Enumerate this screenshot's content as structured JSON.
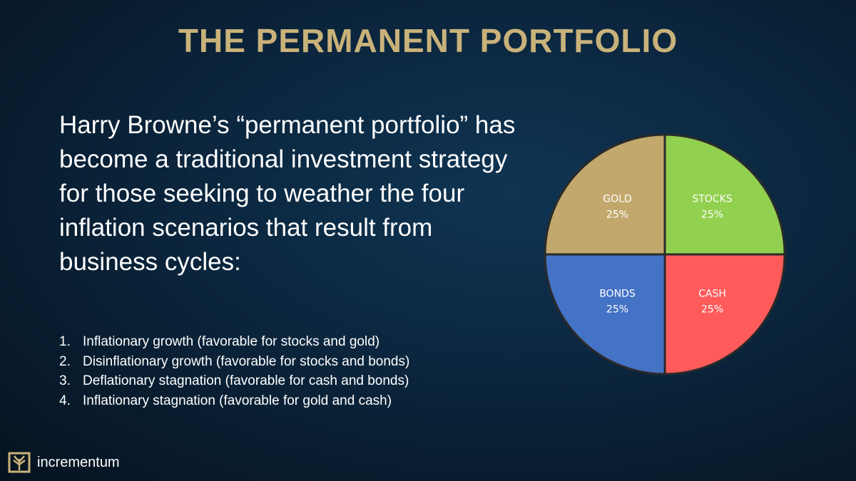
{
  "title": "THE PERMANENT PORTFOLIO",
  "paragraph": "Harry Browne’s “permanent portfolio” has become a traditional investment strategy for those seeking to weather the four inflation scenarios that result from business cycles:",
  "list": [
    "Inflationary growth (favorable for stocks and gold)",
    "Disinflationary growth (favorable for stocks and bonds)",
    "Deflationary stagnation (favorable for cash and bonds)",
    "Inflationary stagnation (favorable for gold and cash)"
  ],
  "list_numbers": [
    "1.",
    "2.",
    "3.",
    "4."
  ],
  "logo": "incrementum",
  "chart_data": {
    "type": "pie",
    "categories": [
      "STOCKS",
      "CASH",
      "BONDS",
      "GOLD"
    ],
    "values": [
      25,
      25,
      25,
      25
    ],
    "value_labels": [
      "25%",
      "25%",
      "25%",
      "25%"
    ],
    "colors": [
      "#92d050",
      "#ff5b5b",
      "#4472c4",
      "#c2a86c"
    ]
  }
}
